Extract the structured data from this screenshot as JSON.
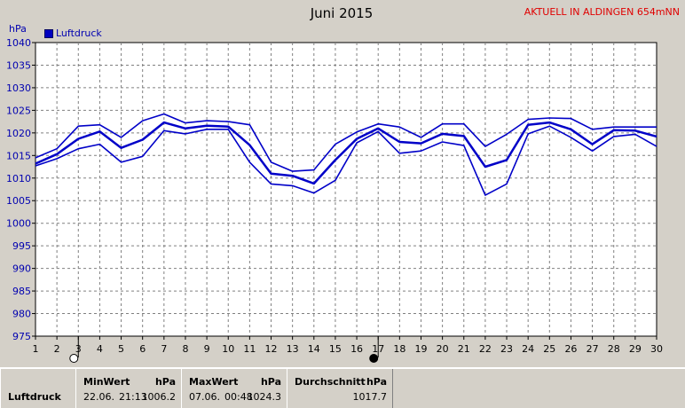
{
  "header": {
    "title": "Juni 2015",
    "station": "AKTUELL IN ALDINGEN 654mNN",
    "unit": "hPa"
  },
  "colors": {
    "line": "#0000c8",
    "grid": "#808080",
    "plot_bg": "#ffffff",
    "station": "#e00000"
  },
  "chart_data": {
    "type": "line",
    "title": "Juni 2015",
    "ylabel": "hPa",
    "xlabel": "",
    "ylim": [
      975,
      1040
    ],
    "yticks": [
      975,
      980,
      985,
      990,
      995,
      1000,
      1005,
      1010,
      1015,
      1020,
      1025,
      1030,
      1035,
      1040
    ],
    "xlim": [
      1,
      30
    ],
    "x": [
      1,
      2,
      3,
      4,
      5,
      6,
      7,
      8,
      9,
      10,
      11,
      12,
      13,
      14,
      15,
      16,
      17,
      18,
      19,
      20,
      21,
      22,
      23,
      24,
      25,
      26,
      27,
      28,
      29,
      30
    ],
    "legend": [
      "Luftdruck"
    ],
    "grid": true,
    "series": [
      {
        "name": "Max",
        "values": [
          1014.5,
          1016.5,
          1021.5,
          1021.8,
          1019,
          1022.7,
          1024.2,
          1022.2,
          1022.7,
          1022.5,
          1021.8,
          1013.5,
          1011.5,
          1011.8,
          1017.5,
          1020.2,
          1022,
          1021.3,
          1019,
          1022,
          1022,
          1017,
          1019.7,
          1023,
          1023.3,
          1023.2,
          1020.8,
          1021.3,
          1021.3,
          1021.3
        ]
      },
      {
        "name": "Avg",
        "values": [
          1013.2,
          1015.3,
          1018.7,
          1020.3,
          1016.7,
          1018.5,
          1022.3,
          1021,
          1021.6,
          1021.4,
          1017.3,
          1011,
          1010.5,
          1008.8,
          1014,
          1018.7,
          1021,
          1018,
          1017.7,
          1019.8,
          1019.3,
          1012.5,
          1014,
          1021.8,
          1022.3,
          1020.8,
          1017.5,
          1020.6,
          1020.5,
          1019.2
        ]
      },
      {
        "name": "Min",
        "values": [
          1012.7,
          1014.3,
          1016.5,
          1017.5,
          1013.5,
          1014.8,
          1020.5,
          1019.8,
          1020.8,
          1020.8,
          1013.5,
          1008.7,
          1008.3,
          1006.7,
          1009.5,
          1017.8,
          1020.3,
          1015.5,
          1016,
          1018,
          1017.2,
          1006.2,
          1008.7,
          1019.8,
          1021.5,
          1019,
          1016,
          1019.2,
          1019.7,
          1017
        ]
      }
    ],
    "moon_phases": [
      {
        "day": 3,
        "phase": "full"
      },
      {
        "day": 17,
        "phase": "new"
      }
    ]
  },
  "stats": {
    "row_label": "Luftdruck",
    "row_label_2": "Luftdruck",
    "min": {
      "header": "MinWert",
      "unit": "hPa",
      "date": "22.06.",
      "time": "21:13",
      "value": "1006.2"
    },
    "max": {
      "header": "MaxWert",
      "unit": "hPa",
      "date": "07.06.",
      "time": "00:48",
      "value": "1024.3"
    },
    "avg": {
      "header": "Durchschnitt",
      "unit": "hPa",
      "value": "1017.7"
    }
  }
}
